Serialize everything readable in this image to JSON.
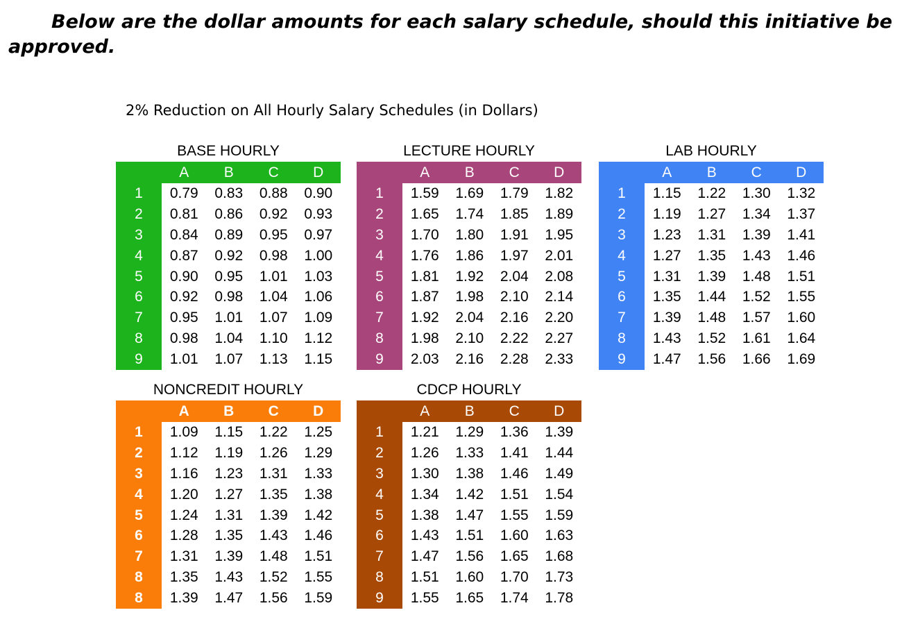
{
  "heading": "Below are the dollar amounts for each salary schedule, should this initiative be approved.",
  "subtitle": "2% Reduction on All Hourly Salary Schedules (in Dollars)",
  "columns": [
    "A",
    "B",
    "C",
    "D"
  ],
  "colors": {
    "base": "#1db31d",
    "lecture": "#a8457a",
    "lab": "#3f83f5",
    "noncredit": "#fa7d0a",
    "cdcp": "#a84a06"
  },
  "schedules": [
    {
      "title": "BASE HOURLY",
      "rows": [
        {
          "step": "1",
          "values": [
            "0.79",
            "0.83",
            "0.88",
            "0.90"
          ]
        },
        {
          "step": "2",
          "values": [
            "0.81",
            "0.86",
            "0.92",
            "0.93"
          ]
        },
        {
          "step": "3",
          "values": [
            "0.84",
            "0.89",
            "0.95",
            "0.97"
          ]
        },
        {
          "step": "4",
          "values": [
            "0.87",
            "0.92",
            "0.98",
            "1.00"
          ]
        },
        {
          "step": "5",
          "values": [
            "0.90",
            "0.95",
            "1.01",
            "1.03"
          ]
        },
        {
          "step": "6",
          "values": [
            "0.92",
            "0.98",
            "1.04",
            "1.06"
          ]
        },
        {
          "step": "7",
          "values": [
            "0.95",
            "1.01",
            "1.07",
            "1.09"
          ]
        },
        {
          "step": "8",
          "values": [
            "0.98",
            "1.04",
            "1.10",
            "1.12"
          ]
        },
        {
          "step": "9",
          "values": [
            "1.01",
            "1.07",
            "1.13",
            "1.15"
          ]
        }
      ]
    },
    {
      "title": "LECTURE HOURLY",
      "rows": [
        {
          "step": "1",
          "values": [
            "1.59",
            "1.69",
            "1.79",
            "1.82"
          ]
        },
        {
          "step": "2",
          "values": [
            "1.65",
            "1.74",
            "1.85",
            "1.89"
          ]
        },
        {
          "step": "3",
          "values": [
            "1.70",
            "1.80",
            "1.91",
            "1.95"
          ]
        },
        {
          "step": "4",
          "values": [
            "1.76",
            "1.86",
            "1.97",
            "2.01"
          ]
        },
        {
          "step": "5",
          "values": [
            "1.81",
            "1.92",
            "2.04",
            "2.08"
          ]
        },
        {
          "step": "6",
          "values": [
            "1.87",
            "1.98",
            "2.10",
            "2.14"
          ]
        },
        {
          "step": "7",
          "values": [
            "1.92",
            "2.04",
            "2.16",
            "2.20"
          ]
        },
        {
          "step": "8",
          "values": [
            "1.98",
            "2.10",
            "2.22",
            "2.27"
          ]
        },
        {
          "step": "9",
          "values": [
            "2.03",
            "2.16",
            "2.28",
            "2.33"
          ]
        }
      ]
    },
    {
      "title": "LAB HOURLY",
      "rows": [
        {
          "step": "1",
          "values": [
            "1.15",
            "1.22",
            "1.30",
            "1.32"
          ]
        },
        {
          "step": "2",
          "values": [
            "1.19",
            "1.27",
            "1.34",
            "1.37"
          ]
        },
        {
          "step": "3",
          "values": [
            "1.23",
            "1.31",
            "1.39",
            "1.41"
          ]
        },
        {
          "step": "4",
          "values": [
            "1.27",
            "1.35",
            "1.43",
            "1.46"
          ]
        },
        {
          "step": "5",
          "values": [
            "1.31",
            "1.39",
            "1.48",
            "1.51"
          ]
        },
        {
          "step": "6",
          "values": [
            "1.35",
            "1.44",
            "1.52",
            "1.55"
          ]
        },
        {
          "step": "7",
          "values": [
            "1.39",
            "1.48",
            "1.57",
            "1.60"
          ]
        },
        {
          "step": "8",
          "values": [
            "1.43",
            "1.52",
            "1.61",
            "1.64"
          ]
        },
        {
          "step": "9",
          "values": [
            "1.47",
            "1.56",
            "1.66",
            "1.69"
          ]
        }
      ]
    },
    {
      "title": "NONCREDIT HOURLY",
      "rows": [
        {
          "step": "1",
          "values": [
            "1.09",
            "1.15",
            "1.22",
            "1.25"
          ]
        },
        {
          "step": "2",
          "values": [
            "1.12",
            "1.19",
            "1.26",
            "1.29"
          ]
        },
        {
          "step": "3",
          "values": [
            "1.16",
            "1.23",
            "1.31",
            "1.33"
          ]
        },
        {
          "step": "4",
          "values": [
            "1.20",
            "1.27",
            "1.35",
            "1.38"
          ]
        },
        {
          "step": "5",
          "values": [
            "1.24",
            "1.31",
            "1.39",
            "1.42"
          ]
        },
        {
          "step": "6",
          "values": [
            "1.28",
            "1.35",
            "1.43",
            "1.46"
          ]
        },
        {
          "step": "7",
          "values": [
            "1.31",
            "1.39",
            "1.48",
            "1.51"
          ]
        },
        {
          "step": "8",
          "values": [
            "1.35",
            "1.43",
            "1.52",
            "1.55"
          ]
        },
        {
          "step": "8",
          "values": [
            "1.39",
            "1.47",
            "1.56",
            "1.59"
          ]
        }
      ]
    },
    {
      "title": "CDCP HOURLY",
      "rows": [
        {
          "step": "1",
          "values": [
            "1.21",
            "1.29",
            "1.36",
            "1.39"
          ]
        },
        {
          "step": "2",
          "values": [
            "1.26",
            "1.33",
            "1.41",
            "1.44"
          ]
        },
        {
          "step": "3",
          "values": [
            "1.30",
            "1.38",
            "1.46",
            "1.49"
          ]
        },
        {
          "step": "4",
          "values": [
            "1.34",
            "1.42",
            "1.51",
            "1.54"
          ]
        },
        {
          "step": "5",
          "values": [
            "1.38",
            "1.47",
            "1.55",
            "1.59"
          ]
        },
        {
          "step": "6",
          "values": [
            "1.43",
            "1.51",
            "1.60",
            "1.63"
          ]
        },
        {
          "step": "7",
          "values": [
            "1.47",
            "1.56",
            "1.65",
            "1.68"
          ]
        },
        {
          "step": "8",
          "values": [
            "1.51",
            "1.60",
            "1.70",
            "1.73"
          ]
        },
        {
          "step": "9",
          "values": [
            "1.55",
            "1.65",
            "1.74",
            "1.78"
          ]
        }
      ]
    }
  ]
}
